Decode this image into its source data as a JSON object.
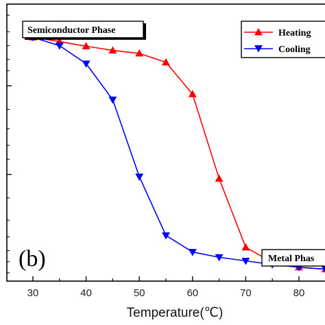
{
  "chart_data": {
    "type": "line",
    "xlabel": "Temperature(℃)",
    "ylabel": "",
    "xlim": [
      25,
      85
    ],
    "x_ticks": [
      30,
      40,
      50,
      60,
      70,
      80
    ],
    "x_tick_labels": [
      "30",
      "40",
      "50",
      "60",
      "70",
      "80"
    ],
    "y_scale": "log",
    "y_axis_labels_visible": false,
    "grid": false,
    "legend_position": "top-right",
    "x": [
      30,
      35,
      40,
      45,
      50,
      55,
      60,
      65,
      70,
      75,
      80,
      85
    ],
    "series": [
      {
        "name": "Heating",
        "color": "#ff0000",
        "marker": "triangle-up",
        "values": [
          0.88,
          0.865,
          0.848,
          0.833,
          0.822,
          0.79,
          0.675,
          0.37,
          0.122,
          0.068,
          0.05,
          0.043
        ]
      },
      {
        "name": "Cooling",
        "color": "#0000ff",
        "marker": "triangle-down",
        "values": [
          0.88,
          0.85,
          0.785,
          0.655,
          0.377,
          0.165,
          0.105,
          0.086,
          0.073,
          0.06,
          0.05,
          0.043
        ]
      }
    ],
    "annotations": {
      "semiconductor": "Semiconductor Phase",
      "metal": "Metal Phas",
      "panel": "(b)"
    }
  }
}
